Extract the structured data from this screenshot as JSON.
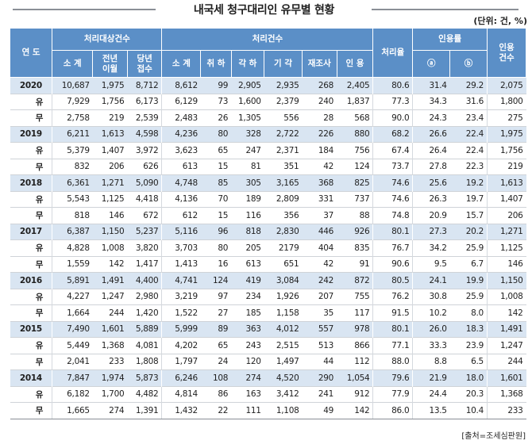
{
  "title": "내국세 청구대리인 유무별 현황",
  "unit": "(단위: 건, %)",
  "source": "[출처=조세심판원]",
  "headers": {
    "year": "연 도",
    "group_target": "처리대상건수",
    "group_processed": "처리건수",
    "rate": "처리율",
    "group_citation": "인용률",
    "cited": "인용\n건수",
    "target_sub": [
      "소 계",
      "전년\n이월",
      "당년\n접수"
    ],
    "processed_sub": [
      "소 계",
      "취 하",
      "각 하",
      "기 각",
      "재조사",
      "인 용"
    ],
    "citation_sub": [
      "ⓐ",
      "ⓑ"
    ]
  },
  "rows": [
    {
      "label": "2020",
      "year": true,
      "v": [
        "10,687",
        "1,975",
        "8,712",
        "8,612",
        "99",
        "2,905",
        "2,935",
        "268",
        "2,405",
        "80.6",
        "31.4",
        "29.2",
        "2,075"
      ]
    },
    {
      "label": "유",
      "year": false,
      "v": [
        "7,929",
        "1,756",
        "6,173",
        "6,129",
        "73",
        "1,600",
        "2,379",
        "240",
        "1,837",
        "77.3",
        "34.3",
        "31.6",
        "1,800"
      ]
    },
    {
      "label": "무",
      "year": false,
      "v": [
        "2,758",
        "219",
        "2,539",
        "2,483",
        "26",
        "1,305",
        "556",
        "28",
        "568",
        "90.0",
        "24.3",
        "23.4",
        "275"
      ]
    },
    {
      "label": "2019",
      "year": true,
      "v": [
        "6,211",
        "1,613",
        "4,598",
        "4,236",
        "80",
        "328",
        "2,722",
        "226",
        "880",
        "68.2",
        "26.6",
        "22.4",
        "1,975"
      ]
    },
    {
      "label": "유",
      "year": false,
      "v": [
        "5,379",
        "1,407",
        "3,972",
        "3,623",
        "65",
        "247",
        "2,371",
        "184",
        "756",
        "67.4",
        "26.4",
        "22.4",
        "1,756"
      ]
    },
    {
      "label": "무",
      "year": false,
      "v": [
        "832",
        "206",
        "626",
        "613",
        "15",
        "81",
        "351",
        "42",
        "124",
        "73.7",
        "27.8",
        "22.3",
        "219"
      ]
    },
    {
      "label": "2018",
      "year": true,
      "v": [
        "6,361",
        "1,271",
        "5,090",
        "4,748",
        "85",
        "305",
        "3,165",
        "368",
        "825",
        "74.6",
        "25.6",
        "19.2",
        "1,613"
      ]
    },
    {
      "label": "유",
      "year": false,
      "v": [
        "5,543",
        "1,125",
        "4,418",
        "4,136",
        "70",
        "189",
        "2,809",
        "331",
        "737",
        "74.6",
        "26.3",
        "19.7",
        "1,407"
      ]
    },
    {
      "label": "무",
      "year": false,
      "v": [
        "818",
        "146",
        "672",
        "612",
        "15",
        "116",
        "356",
        "37",
        "88",
        "74.8",
        "20.9",
        "15.7",
        "206"
      ]
    },
    {
      "label": "2017",
      "year": true,
      "v": [
        "6,387",
        "1,150",
        "5,237",
        "5,116",
        "96",
        "818",
        "2,830",
        "446",
        "926",
        "80.1",
        "27.3",
        "20.2",
        "1,271"
      ]
    },
    {
      "label": "유",
      "year": false,
      "v": [
        "4,828",
        "1,008",
        "3,820",
        "3,703",
        "80",
        "205",
        "2179",
        "404",
        "835",
        "76.7",
        "34.2",
        "25.9",
        "1,125"
      ]
    },
    {
      "label": "무",
      "year": false,
      "v": [
        "1,559",
        "142",
        "1,417",
        "1,413",
        "16",
        "613",
        "651",
        "42",
        "91",
        "90.6",
        "9.5",
        "6.7",
        "146"
      ]
    },
    {
      "label": "2016",
      "year": true,
      "v": [
        "5,891",
        "1,491",
        "4,400",
        "4,741",
        "124",
        "419",
        "3,084",
        "242",
        "872",
        "80.5",
        "24.1",
        "19.9",
        "1,150"
      ]
    },
    {
      "label": "유",
      "year": false,
      "v": [
        "4,227",
        "1,247",
        "2,980",
        "3,219",
        "97",
        "234",
        "1,926",
        "207",
        "755",
        "76.2",
        "30.8",
        "25.9",
        "1,008"
      ]
    },
    {
      "label": "무",
      "year": false,
      "v": [
        "1,664",
        "244",
        "1,420",
        "1,522",
        "27",
        "185",
        "1,158",
        "35",
        "117",
        "91.5",
        "10.2",
        "8.0",
        "142"
      ]
    },
    {
      "label": "2015",
      "year": true,
      "v": [
        "7,490",
        "1,601",
        "5,889",
        "5,999",
        "89",
        "363",
        "4,012",
        "557",
        "978",
        "80.1",
        "26.0",
        "18.3",
        "1,491"
      ]
    },
    {
      "label": "유",
      "year": false,
      "v": [
        "5,449",
        "1,368",
        "4,081",
        "4,202",
        "65",
        "243",
        "2,515",
        "513",
        "866",
        "77.1",
        "33.3",
        "23.9",
        "1,247"
      ]
    },
    {
      "label": "무",
      "year": false,
      "v": [
        "2,041",
        "233",
        "1,808",
        "1,797",
        "24",
        "120",
        "1,497",
        "44",
        "112",
        "88.0",
        "8.8",
        "6.5",
        "244"
      ]
    },
    {
      "label": "2014",
      "year": true,
      "v": [
        "7,847",
        "1,974",
        "5,873",
        "6,246",
        "108",
        "274",
        "4,520",
        "290",
        "1,054",
        "79.6",
        "21.9",
        "18.0",
        "1,601"
      ]
    },
    {
      "label": "유",
      "year": false,
      "v": [
        "6,182",
        "1,700",
        "4,482",
        "4,814",
        "86",
        "163",
        "3,412",
        "241",
        "912",
        "77.9",
        "24.4",
        "20.3",
        "1,368"
      ]
    },
    {
      "label": "무",
      "year": false,
      "v": [
        "1,665",
        "274",
        "1,391",
        "1,432",
        "22",
        "111",
        "1,108",
        "49",
        "142",
        "86.0",
        "13.5",
        "10.4",
        "233"
      ]
    }
  ]
}
